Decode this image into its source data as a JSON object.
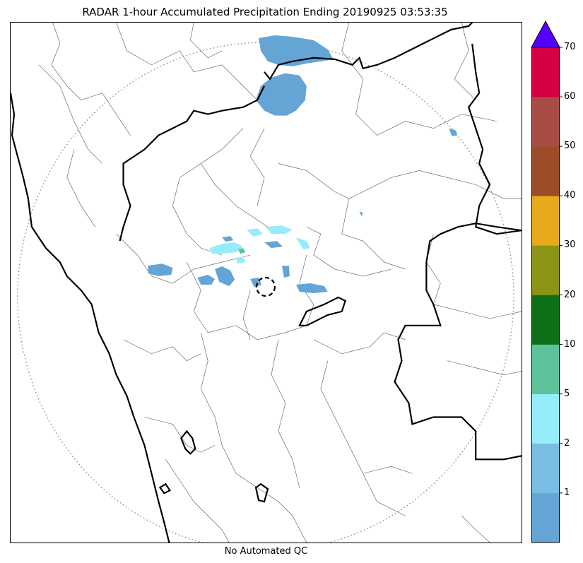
{
  "title": "RADAR 1-hour Accumulated Precipitation Ending 20190925 03:53:35",
  "footer": "No Automated QC",
  "colorbar": {
    "extend": "max",
    "extend_color": "#5500ff",
    "bins": [
      {
        "color": "#65a5d5"
      },
      {
        "color": "#78bde2"
      },
      {
        "color": "#95edfb"
      },
      {
        "color": "#5ec39b"
      },
      {
        "color": "#0d7018"
      },
      {
        "color": "#8b9415"
      },
      {
        "color": "#e9a91c"
      },
      {
        "color": "#9c4d28"
      },
      {
        "color": "#a84d45"
      },
      {
        "color": "#d40042"
      }
    ],
    "tick_labels": [
      "1",
      "2",
      "5",
      "10",
      "20",
      "30",
      "40",
      "50",
      "60",
      "70"
    ]
  },
  "map": {
    "range_ring_style": "dotted",
    "radar_marker": "dashed-circle",
    "boundary_color": "#000000",
    "echo_colors": {
      "light": "#65a5d5",
      "moderate": "#95edfb",
      "heavy": "#5ec39b"
    }
  }
}
